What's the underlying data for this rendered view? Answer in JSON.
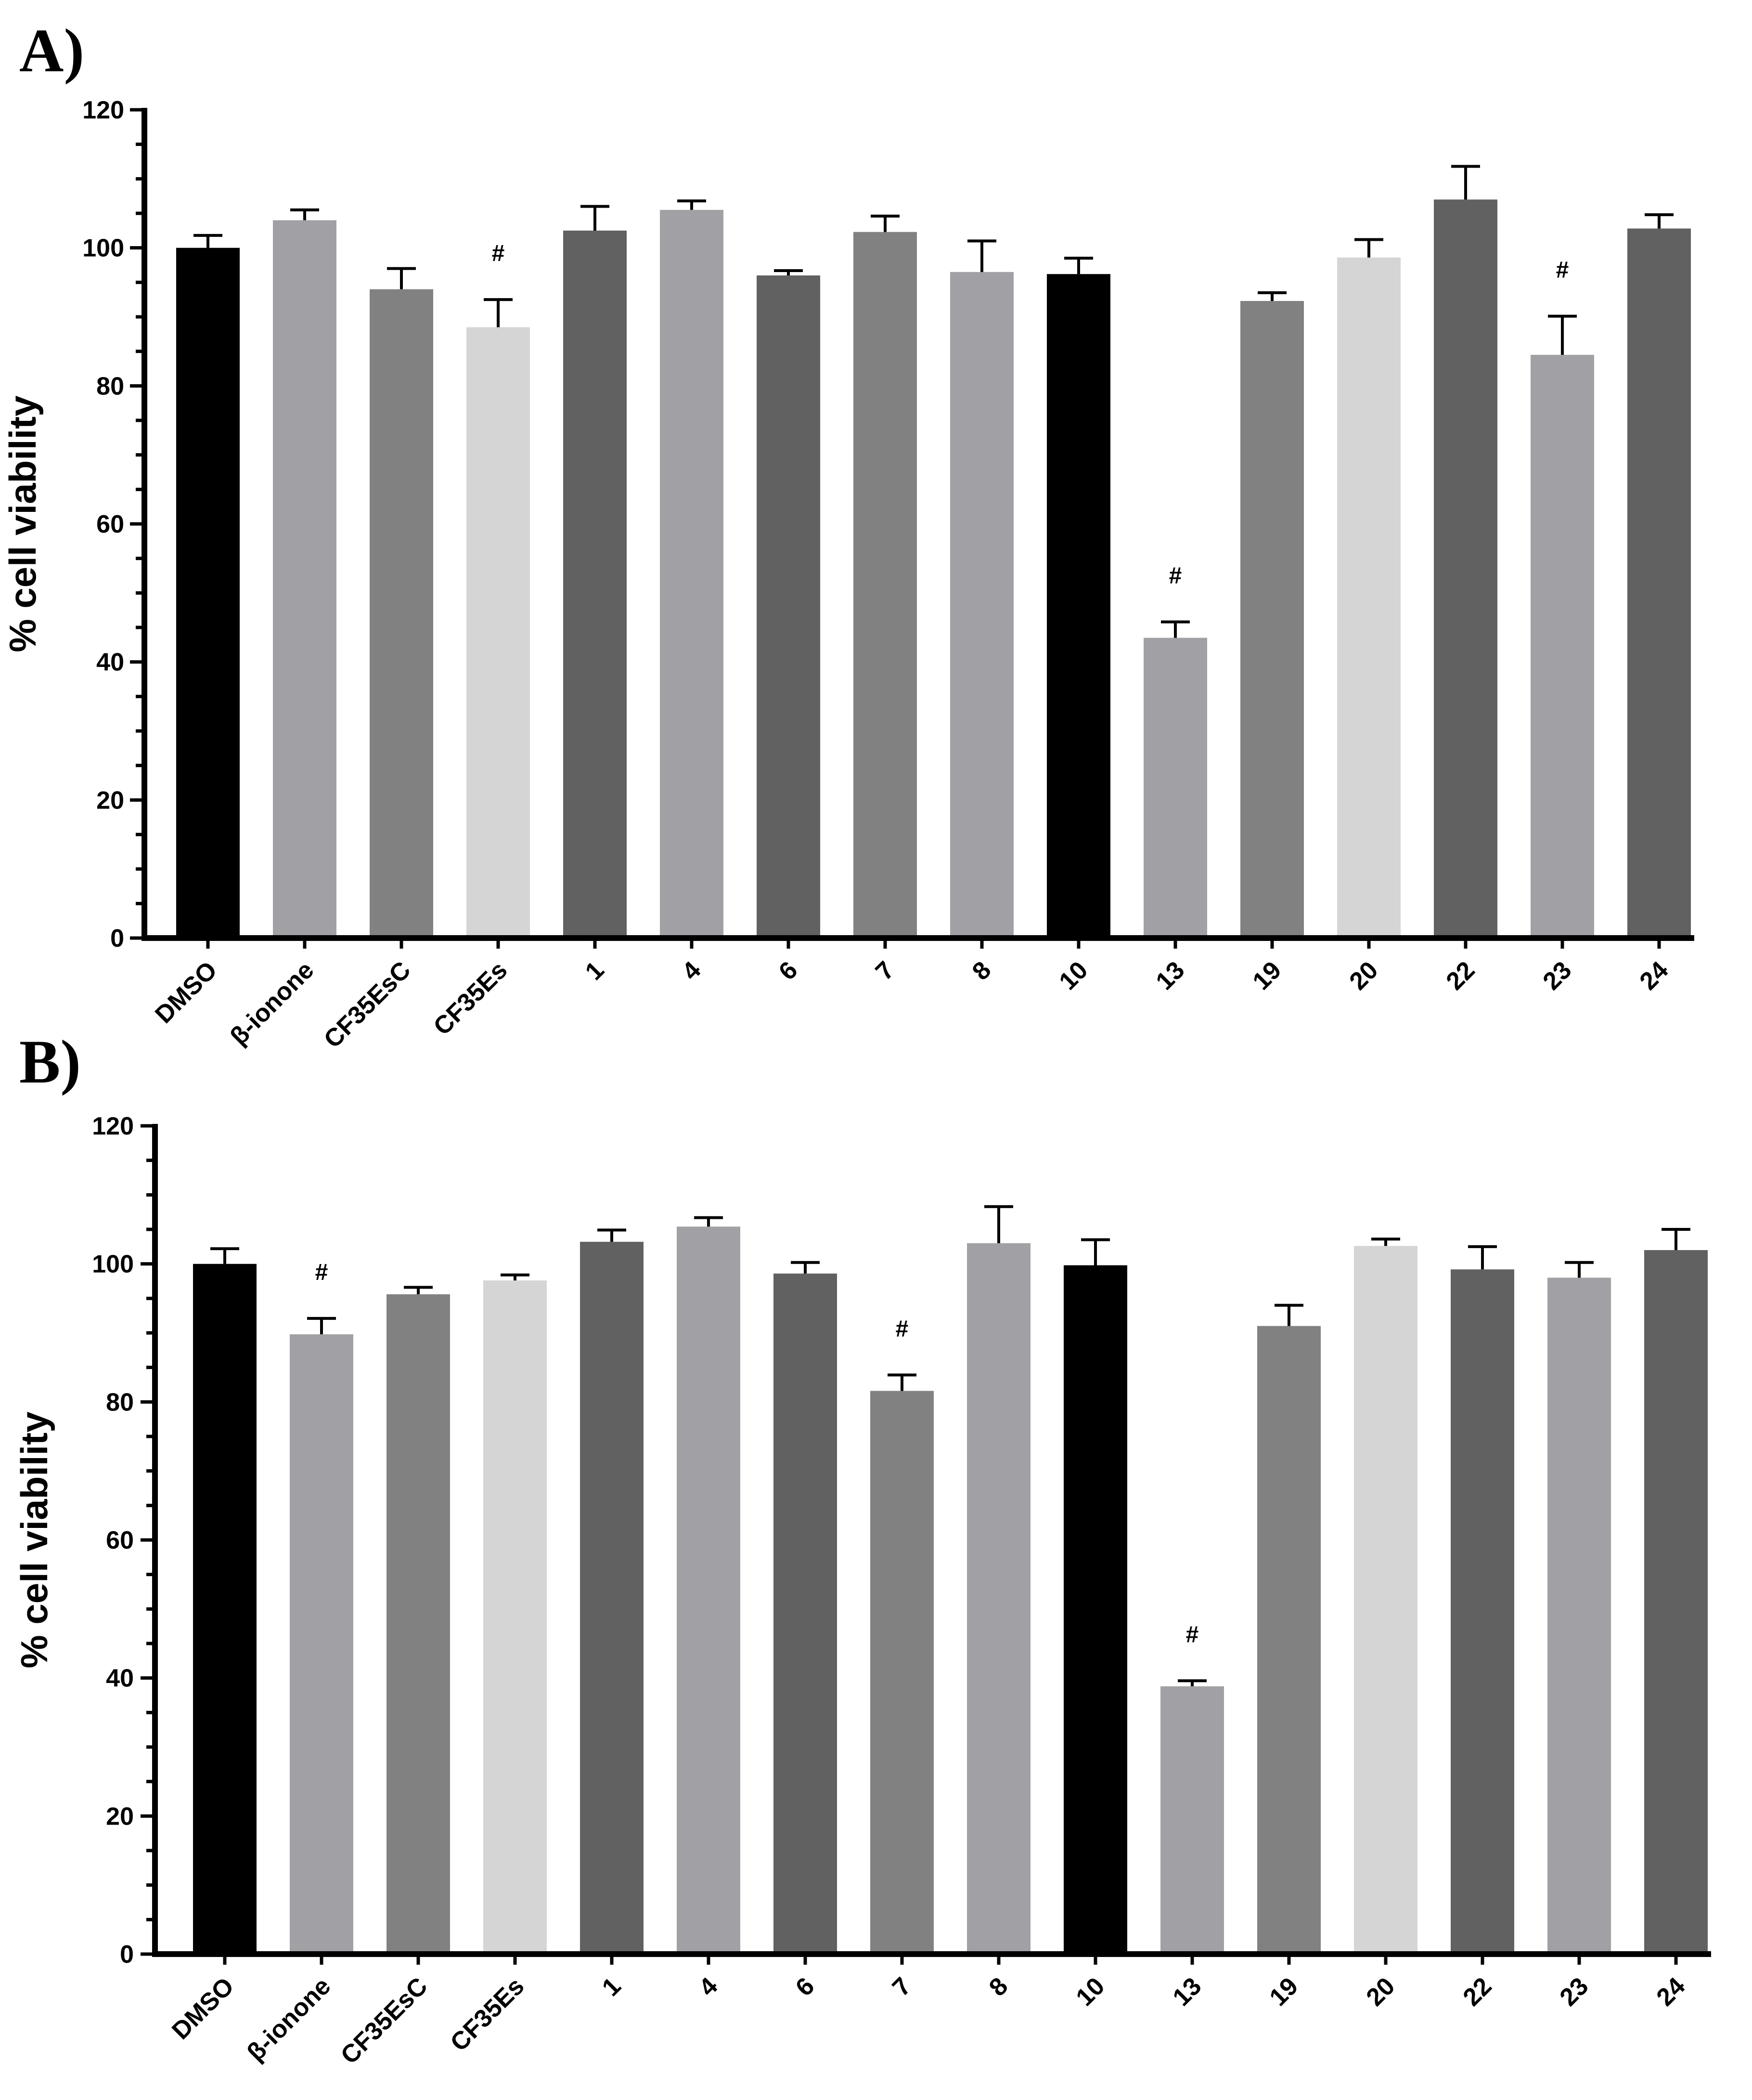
{
  "chart_data": [
    {
      "panel": "A)",
      "type": "bar",
      "ylabel": "% cell viability",
      "xlabel": "",
      "ylim": [
        0,
        120
      ],
      "yticks": [
        0,
        20,
        40,
        60,
        80,
        100,
        120
      ],
      "categories": [
        "DMSO",
        "β-ionone",
        "CF35EsC",
        "CF35Es",
        "1",
        "4",
        "6",
        "7",
        "8",
        "10",
        "13",
        "19",
        "20",
        "22",
        "23",
        "24"
      ],
      "values": [
        100,
        104,
        94,
        88.5,
        102.5,
        105.5,
        96,
        102.3,
        96.5,
        96.2,
        43.5,
        92.3,
        98.6,
        107,
        84.5,
        102.8
      ],
      "errors": [
        1.8,
        1.5,
        3.0,
        4.0,
        3.5,
        1.3,
        0.7,
        2.3,
        4.5,
        2.3,
        2.3,
        1.2,
        2.6,
        4.8,
        5.6,
        2.0
      ],
      "annotations": [
        "",
        "",
        "",
        "#",
        "",
        "",
        "",
        "",
        "",
        "",
        "#",
        "",
        "",
        "",
        "#",
        ""
      ],
      "colors": [
        "#000000",
        "#a1a0a4",
        "#818181",
        "#d5d5d5",
        "#616161",
        "#a1a0a4",
        "#616161",
        "#818181",
        "#a1a0a4",
        "#000000",
        "#a1a0a4",
        "#818181",
        "#d5d5d5",
        "#616161",
        "#a1a0a4",
        "#616161"
      ]
    },
    {
      "panel": "B)",
      "type": "bar",
      "ylabel": "% cell viability",
      "xlabel": "",
      "ylim": [
        0,
        120
      ],
      "yticks": [
        0,
        20,
        40,
        60,
        80,
        100,
        120
      ],
      "categories": [
        "DMSO",
        "β-ionone",
        "CF35EsC",
        "CF35Es",
        "1",
        "4",
        "6",
        "7",
        "8",
        "10",
        "13",
        "19",
        "20",
        "22",
        "23",
        "24"
      ],
      "values": [
        100,
        89.8,
        95.6,
        97.6,
        103.2,
        105.4,
        98.6,
        81.6,
        103,
        99.8,
        38.8,
        91,
        102.6,
        99.2,
        98,
        102
      ],
      "errors": [
        2.2,
        2.3,
        1.0,
        0.8,
        1.7,
        1.3,
        1.6,
        2.3,
        5.3,
        3.7,
        0.8,
        3.0,
        1.0,
        3.3,
        2.2,
        3.0
      ],
      "annotations": [
        "",
        "#",
        "",
        "",
        "",
        "",
        "",
        "#",
        "",
        "",
        "#",
        "",
        "",
        "",
        "",
        ""
      ],
      "colors": [
        "#000000",
        "#a1a0a4",
        "#818181",
        "#d5d5d5",
        "#616161",
        "#a1a0a4",
        "#616161",
        "#818181",
        "#a1a0a4",
        "#000000",
        "#a1a0a4",
        "#818181",
        "#d5d5d5",
        "#616161",
        "#a1a0a4",
        "#616161"
      ]
    }
  ]
}
